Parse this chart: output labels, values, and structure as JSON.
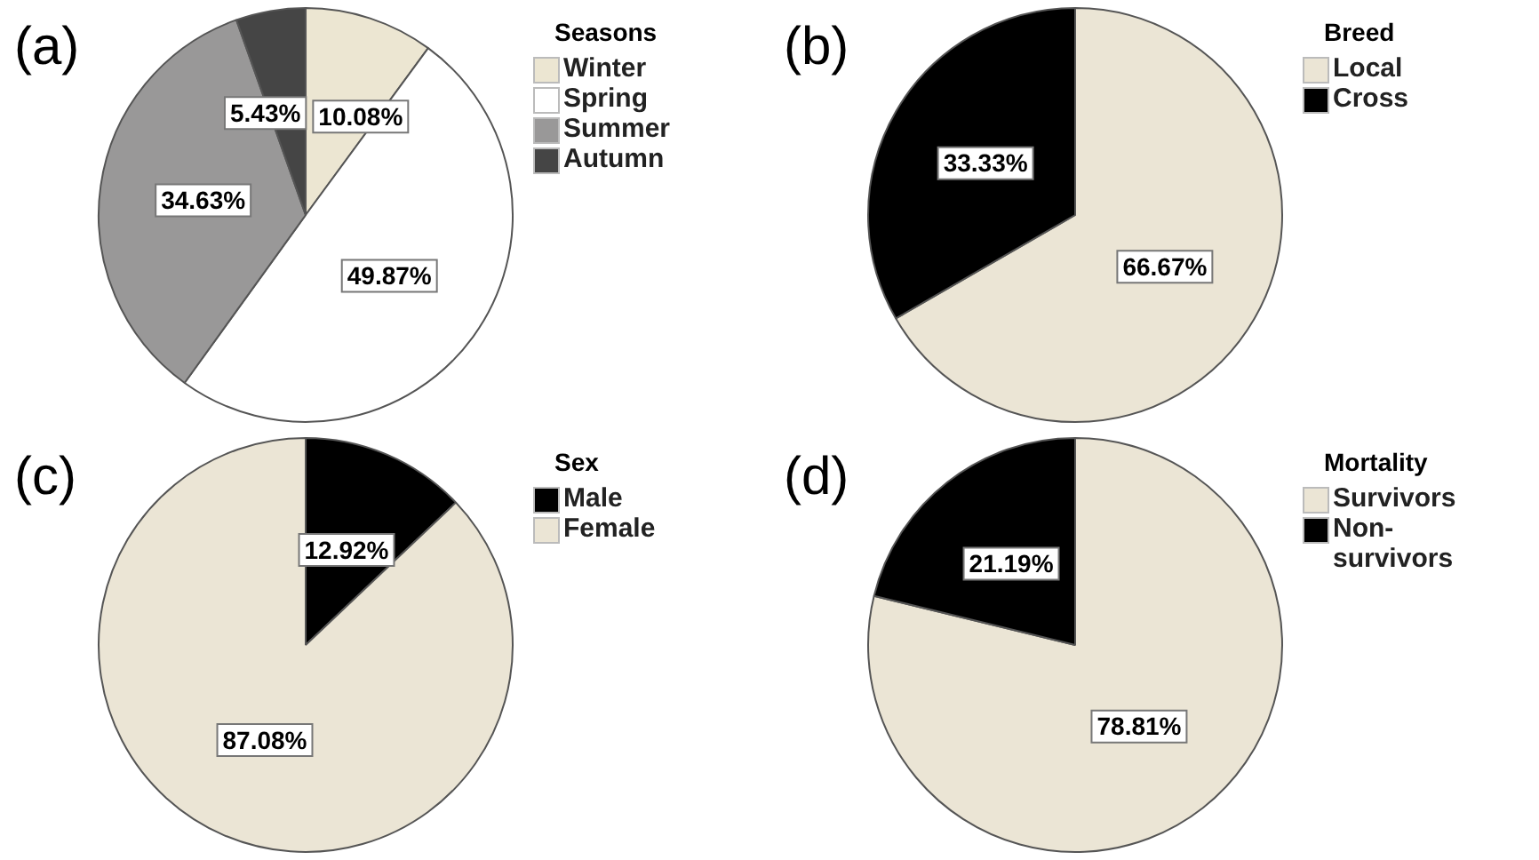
{
  "chart_data": [
    {
      "type": "pie",
      "title": "(a)",
      "legend_title": "Seasons",
      "legend": "top right",
      "categories": [
        "Winter",
        "Spring",
        "Summer",
        "Autumn"
      ],
      "values": [
        10.08,
        49.87,
        34.63,
        5.43
      ],
      "value_labels": [
        "10.08%",
        "49.87%",
        "34.63%",
        "5.43%"
      ],
      "colors": [
        "#ece6d2",
        "#ffffff",
        "#999898",
        "#454545"
      ]
    },
    {
      "type": "pie",
      "title": "(b)",
      "legend_title": "Breed",
      "legend": "top right",
      "categories": [
        "Local",
        "Cross"
      ],
      "values": [
        66.67,
        33.33
      ],
      "value_labels": [
        "66.67%",
        "33.33%"
      ],
      "colors": [
        "#ebe5d5",
        "#000000"
      ]
    },
    {
      "type": "pie",
      "title": "(c)",
      "legend_title": "Sex",
      "legend": "top right",
      "categories": [
        "Male",
        "Female"
      ],
      "values": [
        12.92,
        87.08
      ],
      "value_labels": [
        "12.92%",
        "87.08%"
      ],
      "colors": [
        "#000000",
        "#ebe5d5"
      ]
    },
    {
      "type": "pie",
      "title": "(d)",
      "legend_title": "Mortality",
      "legend": "top right",
      "categories": [
        "Survivors",
        "Non-survivors"
      ],
      "values": [
        78.81,
        21.19
      ],
      "value_labels": [
        "78.81%",
        "21.19%"
      ],
      "colors": [
        "#ebe5d5",
        "#000000"
      ]
    }
  ]
}
